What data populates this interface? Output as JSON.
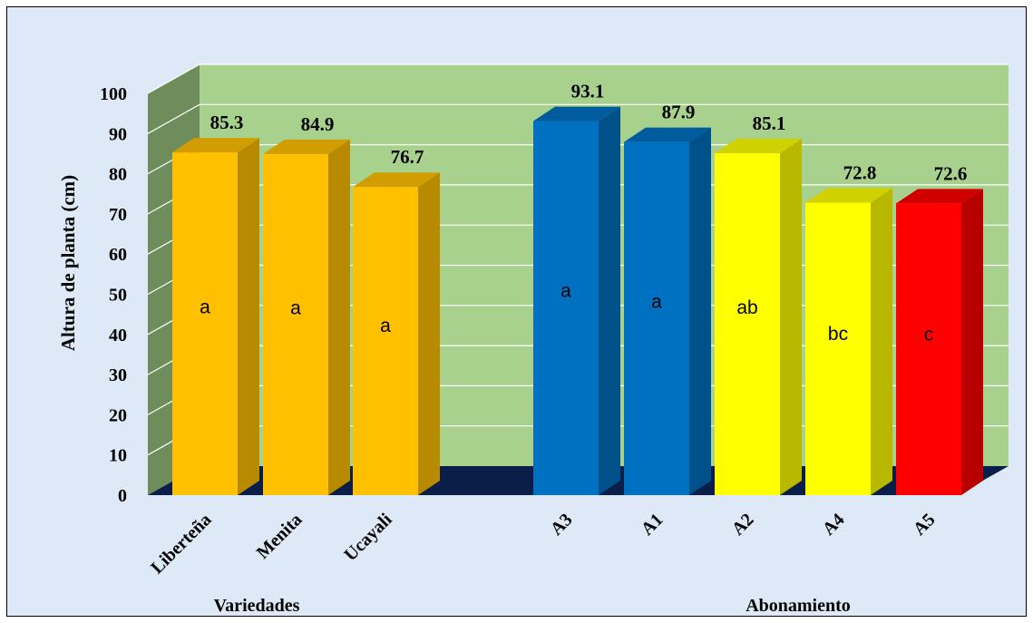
{
  "chart_data": {
    "type": "bar",
    "ylabel": "Altura de planta (cm)",
    "ylim": [
      0,
      100
    ],
    "yticks": [
      0,
      10,
      20,
      30,
      40,
      50,
      60,
      70,
      80,
      90,
      100
    ],
    "grid": true,
    "groups": [
      {
        "label": "Variedades",
        "bars": [
          {
            "category": "Liberteña",
            "value": 85.3,
            "letter": "a",
            "color": "#ffc000"
          },
          {
            "category": "Menita",
            "value": 84.9,
            "letter": "a",
            "color": "#ffc000"
          },
          {
            "category": "Ucayali",
            "value": 76.7,
            "letter": "a",
            "color": "#ffc000"
          }
        ]
      },
      {
        "label": "Abonamiento",
        "bars": [
          {
            "category": "A3",
            "value": 93.1,
            "letter": "a",
            "color": "#0070c0"
          },
          {
            "category": "A1",
            "value": 87.9,
            "letter": "a",
            "color": "#0070c0"
          },
          {
            "category": "A2",
            "value": 85.1,
            "letter": "ab",
            "color": "#ffff00"
          },
          {
            "category": "A4",
            "value": 72.8,
            "letter": "bc",
            "color": "#ffff00"
          },
          {
            "category": "A5",
            "value": 72.6,
            "letter": "c",
            "color": "#ff0000"
          }
        ]
      }
    ],
    "colors": {
      "back_wall": "#a9d18e",
      "side_wall": "#6f8d5a",
      "floor": "#0b1e4a",
      "gridline": "#ffffff"
    }
  }
}
